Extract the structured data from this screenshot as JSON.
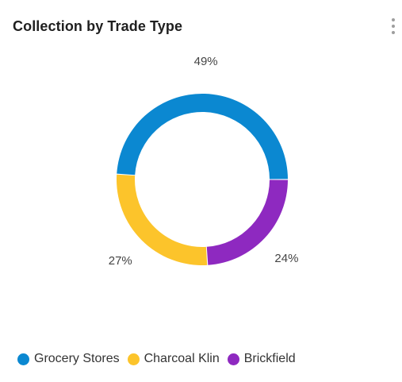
{
  "header": {
    "title": "Collection by Trade Type",
    "menu_icon": "vertical-dots-icon"
  },
  "chart_data": {
    "type": "pie",
    "donut": true,
    "title": "Collection by Trade Type",
    "labels": [
      "Grocery Stores",
      "Brickfield",
      "Charcoal Klin"
    ],
    "values": [
      49,
      24,
      27
    ],
    "percent_labels": [
      "49%",
      "24%",
      "27%"
    ],
    "colors": [
      "#0b88d1",
      "#8e29c0",
      "#fcc42b"
    ],
    "legend_position": "bottom-left",
    "legend_order": [
      "Grocery Stores",
      "Charcoal Klin",
      "Brickfield"
    ]
  }
}
